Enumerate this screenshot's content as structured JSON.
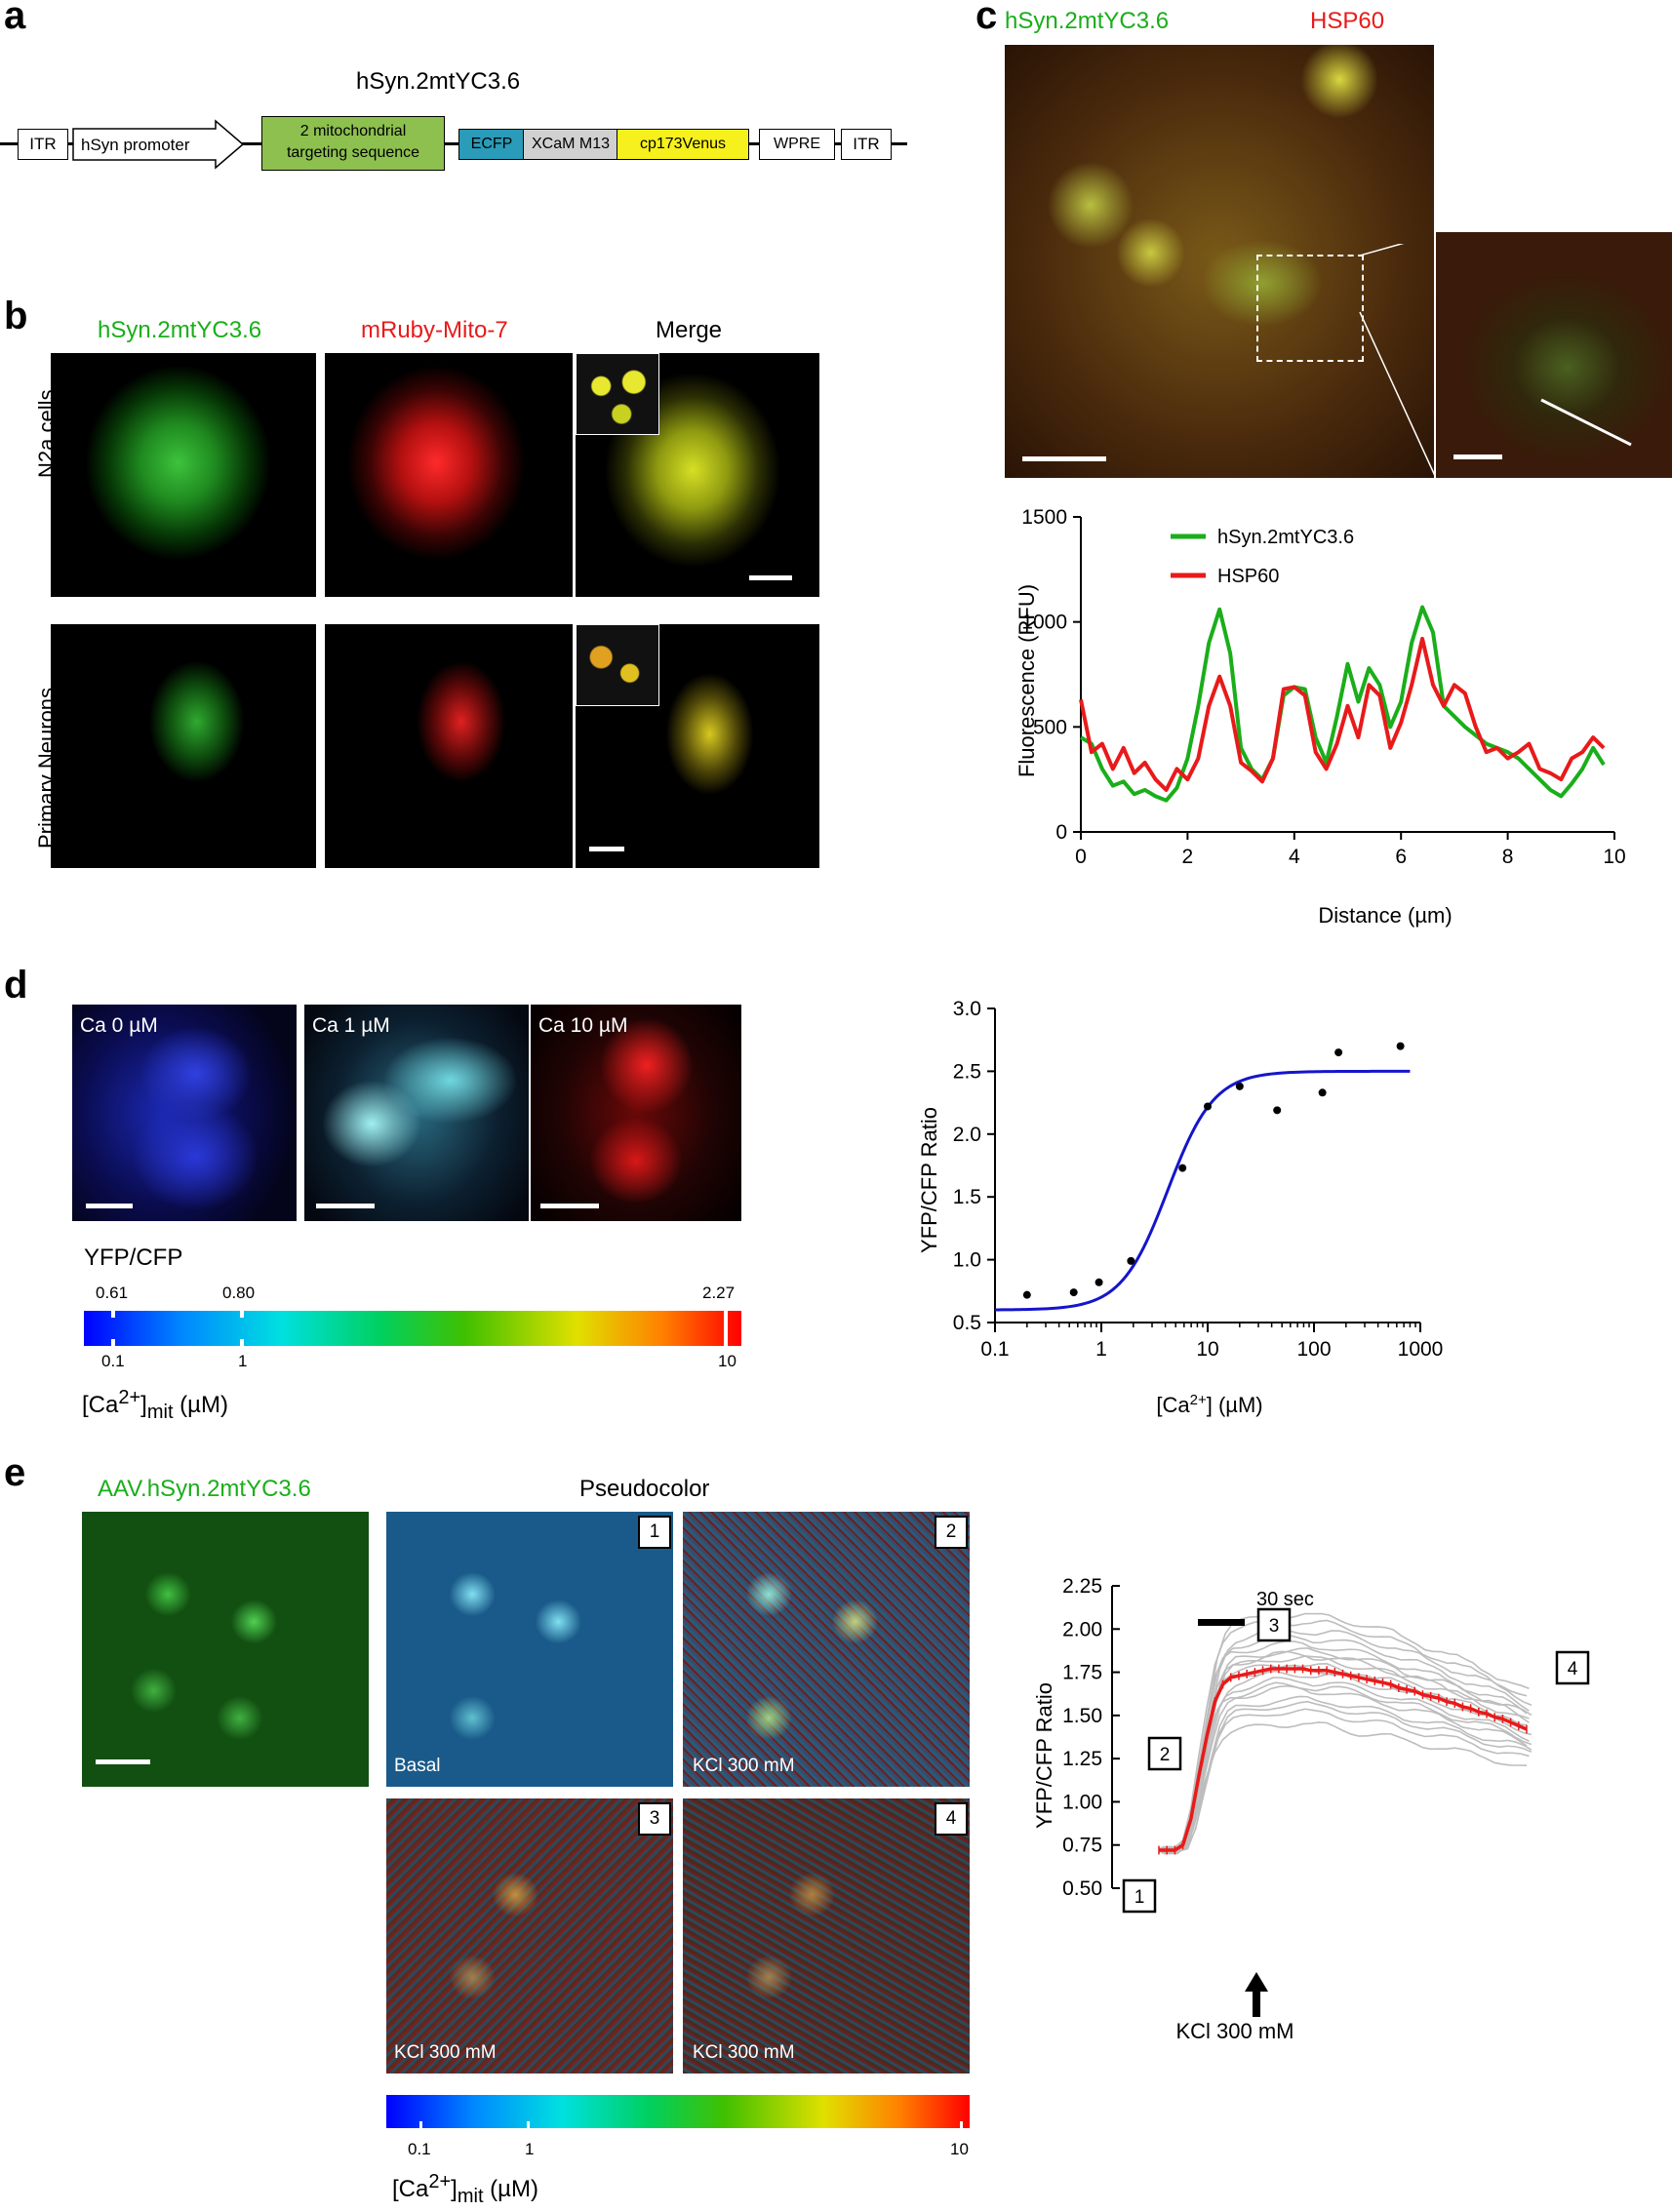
{
  "panels": {
    "a": "a",
    "b": "b",
    "c": "c",
    "d": "d",
    "e": "e"
  },
  "a": {
    "title": "hSyn.2mtYC3.6",
    "segments": [
      "ITR",
      "hSyn  promoter",
      "2 mitochondrial targeting sequence",
      "ECFP",
      "XCaM M13",
      "cp173Venus",
      "WPRE",
      "ITR"
    ],
    "targeting_line1": "2 mitochondrial",
    "targeting_line2": "targeting sequence",
    "colors": {
      "targeting": "#8dc04f",
      "ecfp": "#2a9bb8",
      "xcam": "#d0d0d0",
      "venus": "#f6f01c"
    }
  },
  "b": {
    "col1": "hSyn.2mtYC3.6",
    "col2": "mRuby-Mito-7",
    "col3": "Merge",
    "row1": "N2a cells",
    "row2": "Primary Neurons"
  },
  "c": {
    "green_label": "hSyn.2mtYC3.6",
    "red_label": "HSP60"
  },
  "d": {
    "img1": "Ca 0 µM",
    "img2": "Ca 1 µM",
    "img3": "Ca 10 µM",
    "cbar_title": "YFP/CFP",
    "cbar_top": [
      "0.61",
      "0.80",
      "2.27"
    ],
    "cbar_bottom": [
      "0.1",
      "1",
      "10"
    ],
    "cbar_axis": "[Ca2+]mit (µM)"
  },
  "e": {
    "green_label": "AAV.hSyn.2mtYC3.6",
    "pseudo_title": "Pseudocolor",
    "frames": [
      "1",
      "2",
      "3",
      "4"
    ],
    "frame_labels": [
      "Basal",
      "KCl 300 mM",
      "KCl 300 mM",
      "KCl 300 mM"
    ],
    "cbar_bottom": [
      "0.1",
      "1",
      "10"
    ],
    "cbar_axis": "[Ca2+]mit (µM)"
  },
  "chart_data": [
    {
      "type": "line",
      "panel": "c",
      "xlabel": "Distance (µm)",
      "ylabel": "Fluorescence (RFU)",
      "xlim": [
        0,
        10
      ],
      "ylim": [
        0,
        1500
      ],
      "xticks": [
        0,
        2,
        4,
        6,
        8,
        10
      ],
      "yticks": [
        0,
        500,
        1000,
        1500
      ],
      "legend_position": "top-left",
      "series": [
        {
          "name": "hSyn.2mtYC3.6",
          "color": "#1aae1a",
          "x": [
            0,
            0.2,
            0.4,
            0.6,
            0.8,
            1.0,
            1.2,
            1.4,
            1.6,
            1.8,
            2.0,
            2.2,
            2.4,
            2.6,
            2.8,
            3.0,
            3.2,
            3.4,
            3.6,
            3.8,
            4.0,
            4.2,
            4.4,
            4.6,
            4.8,
            5.0,
            5.2,
            5.4,
            5.6,
            5.8,
            6.0,
            6.2,
            6.4,
            6.6,
            6.8,
            7.0,
            7.2,
            7.4,
            7.6,
            7.8,
            8.0,
            8.2,
            8.4,
            8.6,
            8.8,
            9.0,
            9.2,
            9.4,
            9.6,
            9.8
          ],
          "y": [
            450,
            420,
            300,
            220,
            240,
            180,
            200,
            170,
            150,
            210,
            350,
            600,
            900,
            1060,
            850,
            400,
            300,
            250,
            350,
            650,
            690,
            680,
            450,
            330,
            550,
            800,
            620,
            780,
            700,
            500,
            620,
            900,
            1070,
            950,
            600,
            550,
            500,
            460,
            420,
            400,
            380,
            350,
            300,
            250,
            200,
            170,
            230,
            300,
            400,
            320
          ]
        },
        {
          "name": "HSP60",
          "color": "#e81a1a",
          "x": [
            0,
            0.2,
            0.4,
            0.6,
            0.8,
            1.0,
            1.2,
            1.4,
            1.6,
            1.8,
            2.0,
            2.2,
            2.4,
            2.6,
            2.8,
            3.0,
            3.2,
            3.4,
            3.6,
            3.8,
            4.0,
            4.2,
            4.4,
            4.6,
            4.8,
            5.0,
            5.2,
            5.4,
            5.6,
            5.8,
            6.0,
            6.2,
            6.4,
            6.6,
            6.8,
            7.0,
            7.2,
            7.4,
            7.6,
            7.8,
            8.0,
            8.2,
            8.4,
            8.6,
            8.8,
            9.0,
            9.2,
            9.4,
            9.6,
            9.8
          ],
          "y": [
            630,
            380,
            420,
            300,
            400,
            280,
            330,
            250,
            200,
            300,
            250,
            350,
            600,
            740,
            600,
            330,
            290,
            240,
            350,
            680,
            690,
            650,
            380,
            300,
            420,
            600,
            450,
            700,
            650,
            400,
            520,
            700,
            920,
            700,
            600,
            700,
            660,
            500,
            380,
            400,
            350,
            380,
            420,
            300,
            280,
            250,
            350,
            380,
            450,
            400
          ]
        }
      ]
    },
    {
      "type": "scatter",
      "panel": "d",
      "xlabel": "[Ca2+] (µM)",
      "ylabel": "YFP/CFP Ratio",
      "xscale": "log",
      "xlim": [
        0.1,
        1000
      ],
      "ylim": [
        0.5,
        3.0
      ],
      "xticks": [
        0.1,
        1,
        10,
        100,
        1000
      ],
      "yticks": [
        0.5,
        1.0,
        1.5,
        2.0,
        2.5,
        3.0
      ],
      "points": {
        "x": [
          0.2,
          0.55,
          0.95,
          1.9,
          5.8,
          10,
          20,
          45,
          120,
          170,
          650
        ],
        "y": [
          0.72,
          0.74,
          0.82,
          0.99,
          1.73,
          2.22,
          2.38,
          2.19,
          2.33,
          2.65,
          2.7
        ]
      },
      "fit": {
        "color": "#1515cc",
        "bottom": 0.6,
        "top": 2.5,
        "kd": 4.2,
        "hill": 2.0
      }
    },
    {
      "type": "line",
      "panel": "e",
      "ylabel": "YFP/CFP Ratio",
      "ylim": [
        0.5,
        2.25
      ],
      "yticks": [
        0.5,
        0.75,
        1.0,
        1.25,
        1.5,
        1.75,
        2.0,
        2.25
      ],
      "scalebar": "30 sec",
      "stimulus": "KCl 300 mM",
      "markers": [
        "1",
        "2",
        "3",
        "4"
      ],
      "mean_color": "#e81a1a",
      "trace_color": "#bdbdbd",
      "mean": {
        "t": [
          0,
          5,
          10,
          15,
          20,
          25,
          30,
          35,
          40,
          45,
          50,
          55,
          60,
          65,
          70,
          75,
          80,
          85,
          90,
          95,
          100,
          105,
          110,
          115,
          120,
          125,
          130,
          135,
          140,
          145,
          150,
          155,
          160,
          165,
          170,
          175,
          180,
          185,
          190,
          195,
          200,
          205,
          210,
          215,
          220,
          225,
          230
        ],
        "y": [
          0.72,
          0.72,
          0.72,
          0.75,
          0.9,
          1.15,
          1.38,
          1.58,
          1.68,
          1.72,
          1.73,
          1.74,
          1.75,
          1.76,
          1.77,
          1.77,
          1.77,
          1.77,
          1.77,
          1.76,
          1.76,
          1.76,
          1.75,
          1.74,
          1.73,
          1.72,
          1.71,
          1.7,
          1.69,
          1.68,
          1.66,
          1.65,
          1.64,
          1.62,
          1.61,
          1.6,
          1.58,
          1.57,
          1.55,
          1.54,
          1.52,
          1.51,
          1.49,
          1.48,
          1.46,
          1.44,
          1.42
        ]
      }
    }
  ]
}
